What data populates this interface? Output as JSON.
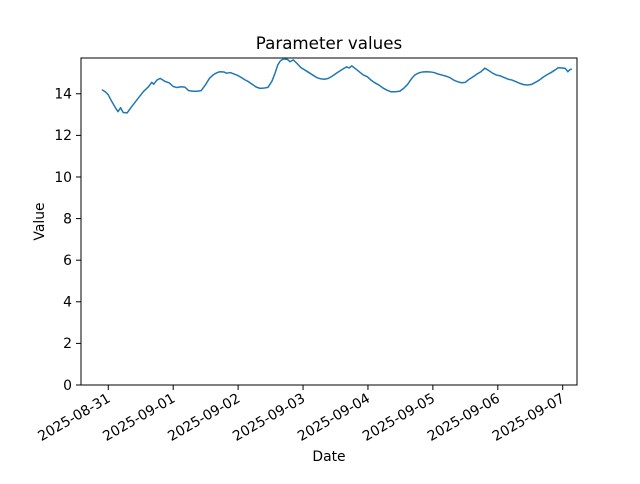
{
  "chart_data": {
    "type": "line",
    "title": "Parameter values",
    "xlabel": "Date",
    "ylabel": "Value",
    "grid": false,
    "legend": "none",
    "background_color": "#ffffff",
    "line_color": "#1f77b4",
    "line_width": 1.5,
    "spine_color": "#000000",
    "ylim": [
      0,
      15.72
    ],
    "y_ticks": [
      0,
      2,
      4,
      6,
      8,
      10,
      12,
      14
    ],
    "x_tick_labels": [
      "2025-08-31",
      "2025-09-01",
      "2025-09-02",
      "2025-09-03",
      "2025-09-04",
      "2025-09-05",
      "2025-09-06",
      "2025-09-07"
    ],
    "x_tick_days": [
      0,
      1,
      2,
      3,
      4,
      5,
      6,
      7
    ],
    "x_tick_rotation_deg": -30,
    "xlim_days": [
      -0.42,
      7.22
    ],
    "x_unit": "days since 2025-08-31 00:00",
    "series": [
      {
        "name": "Parameter values",
        "points": [
          [
            -0.09,
            14.18
          ],
          [
            -0.04,
            14.08
          ],
          [
            0.0,
            13.95
          ],
          [
            0.05,
            13.65
          ],
          [
            0.1,
            13.38
          ],
          [
            0.15,
            13.14
          ],
          [
            0.19,
            13.33
          ],
          [
            0.23,
            13.1
          ],
          [
            0.29,
            13.08
          ],
          [
            0.36,
            13.38
          ],
          [
            0.46,
            13.78
          ],
          [
            0.54,
            14.1
          ],
          [
            0.62,
            14.34
          ],
          [
            0.67,
            14.55
          ],
          [
            0.7,
            14.46
          ],
          [
            0.75,
            14.66
          ],
          [
            0.8,
            14.74
          ],
          [
            0.87,
            14.6
          ],
          [
            0.94,
            14.52
          ],
          [
            1.0,
            14.35
          ],
          [
            1.06,
            14.3
          ],
          [
            1.12,
            14.34
          ],
          [
            1.18,
            14.32
          ],
          [
            1.24,
            14.15
          ],
          [
            1.31,
            14.12
          ],
          [
            1.37,
            14.12
          ],
          [
            1.43,
            14.15
          ],
          [
            1.49,
            14.4
          ],
          [
            1.56,
            14.75
          ],
          [
            1.62,
            14.92
          ],
          [
            1.68,
            15.02
          ],
          [
            1.72,
            15.06
          ],
          [
            1.78,
            15.05
          ],
          [
            1.82,
            14.99
          ],
          [
            1.88,
            15.02
          ],
          [
            1.94,
            14.95
          ],
          [
            1.98,
            14.9
          ],
          [
            2.04,
            14.8
          ],
          [
            2.1,
            14.68
          ],
          [
            2.16,
            14.58
          ],
          [
            2.22,
            14.45
          ],
          [
            2.28,
            14.32
          ],
          [
            2.34,
            14.26
          ],
          [
            2.41,
            14.28
          ],
          [
            2.46,
            14.31
          ],
          [
            2.52,
            14.6
          ],
          [
            2.57,
            15.0
          ],
          [
            2.61,
            15.38
          ],
          [
            2.65,
            15.58
          ],
          [
            2.7,
            15.68
          ],
          [
            2.76,
            15.65
          ],
          [
            2.8,
            15.54
          ],
          [
            2.85,
            15.63
          ],
          [
            2.91,
            15.45
          ],
          [
            2.97,
            15.25
          ],
          [
            3.03,
            15.14
          ],
          [
            3.09,
            15.02
          ],
          [
            3.15,
            14.9
          ],
          [
            3.21,
            14.78
          ],
          [
            3.27,
            14.72
          ],
          [
            3.33,
            14.7
          ],
          [
            3.39,
            14.74
          ],
          [
            3.45,
            14.85
          ],
          [
            3.51,
            14.98
          ],
          [
            3.57,
            15.1
          ],
          [
            3.63,
            15.22
          ],
          [
            3.67,
            15.29
          ],
          [
            3.71,
            15.24
          ],
          [
            3.75,
            15.34
          ],
          [
            3.81,
            15.2
          ],
          [
            3.87,
            15.05
          ],
          [
            3.93,
            14.9
          ],
          [
            3.99,
            14.82
          ],
          [
            4.05,
            14.65
          ],
          [
            4.11,
            14.52
          ],
          [
            4.17,
            14.42
          ],
          [
            4.23,
            14.28
          ],
          [
            4.29,
            14.18
          ],
          [
            4.35,
            14.1
          ],
          [
            4.42,
            14.1
          ],
          [
            4.49,
            14.12
          ],
          [
            4.55,
            14.26
          ],
          [
            4.61,
            14.45
          ],
          [
            4.67,
            14.72
          ],
          [
            4.72,
            14.9
          ],
          [
            4.78,
            15.0
          ],
          [
            4.84,
            15.05
          ],
          [
            4.9,
            15.06
          ],
          [
            4.96,
            15.05
          ],
          [
            5.02,
            15.02
          ],
          [
            5.08,
            14.95
          ],
          [
            5.14,
            14.9
          ],
          [
            5.2,
            14.85
          ],
          [
            5.26,
            14.78
          ],
          [
            5.32,
            14.66
          ],
          [
            5.38,
            14.58
          ],
          [
            5.44,
            14.53
          ],
          [
            5.5,
            14.55
          ],
          [
            5.56,
            14.7
          ],
          [
            5.62,
            14.82
          ],
          [
            5.68,
            14.95
          ],
          [
            5.74,
            15.06
          ],
          [
            5.8,
            15.23
          ],
          [
            5.86,
            15.12
          ],
          [
            5.92,
            14.99
          ],
          [
            5.98,
            14.9
          ],
          [
            6.04,
            14.86
          ],
          [
            6.1,
            14.78
          ],
          [
            6.16,
            14.7
          ],
          [
            6.22,
            14.66
          ],
          [
            6.28,
            14.58
          ],
          [
            6.34,
            14.5
          ],
          [
            6.4,
            14.44
          ],
          [
            6.46,
            14.42
          ],
          [
            6.52,
            14.45
          ],
          [
            6.58,
            14.55
          ],
          [
            6.64,
            14.66
          ],
          [
            6.7,
            14.8
          ],
          [
            6.76,
            14.92
          ],
          [
            6.82,
            15.02
          ],
          [
            6.88,
            15.14
          ],
          [
            6.93,
            15.25
          ],
          [
            6.99,
            15.24
          ],
          [
            7.04,
            15.22
          ],
          [
            7.08,
            15.06
          ],
          [
            7.11,
            15.16
          ],
          [
            7.13,
            15.18
          ]
        ]
      }
    ]
  }
}
